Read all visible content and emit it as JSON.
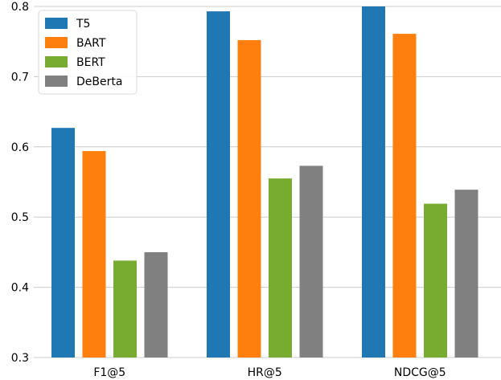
{
  "chart_data": {
    "type": "bar",
    "title": "",
    "xlabel": "",
    "ylabel": "",
    "categories": [
      "F1@5",
      "HR@5",
      "NDCG@5"
    ],
    "series": [
      {
        "name": "T5",
        "color": "#1f77b4",
        "values": [
          0.627,
          0.793,
          0.8
        ]
      },
      {
        "name": "BART",
        "color": "#ff7f0e",
        "values": [
          0.594,
          0.752,
          0.761
        ]
      },
      {
        "name": "BERT",
        "color": "#77ac30",
        "values": [
          0.438,
          0.555,
          0.519
        ]
      },
      {
        "name": "DeBerta",
        "color": "#808080",
        "values": [
          0.45,
          0.573,
          0.539
        ]
      }
    ],
    "ylim": [
      0.3,
      0.8
    ],
    "yticks": [
      "0.3",
      "0.4",
      "0.5",
      "0.6",
      "0.7",
      "0.8"
    ],
    "grid": true,
    "legend_position": "top-left"
  }
}
